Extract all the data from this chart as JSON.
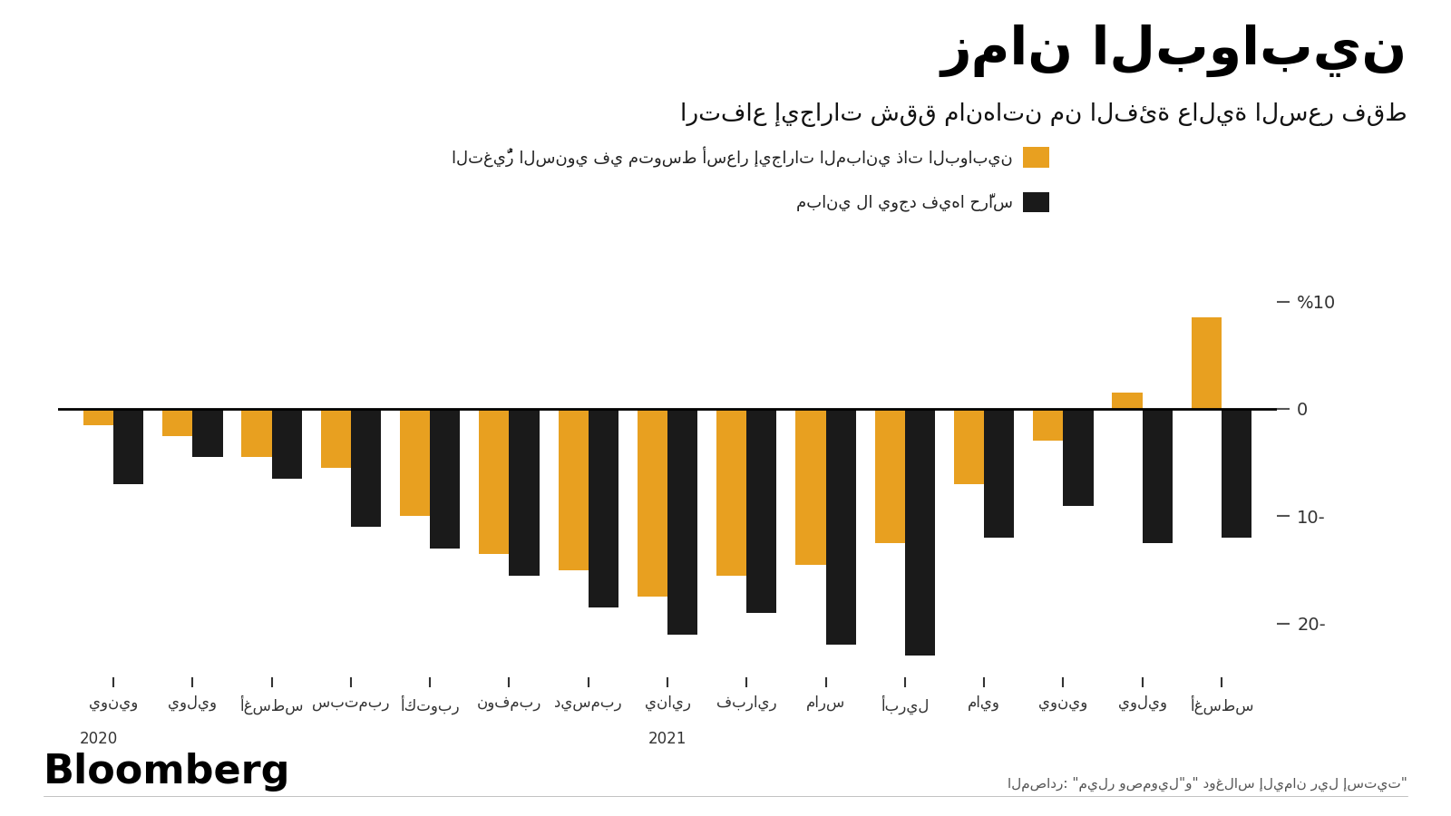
{
  "title": "زمان البوابين",
  "subtitle": "ارتفاع إيجارات شقق مانهاتن من الفئة عالية السعر فقط",
  "legend1": "التغيُّر السنوي في متوسط أسعار إيجارات المباني ذات البوابين",
  "legend2": "مباني لا يوجد فيها حرَّاس",
  "source": "المصادر: \"ميلر وصمويل\"و\" دوغلاس إليمان ريل إستيت\"",
  "bloomberg": "Bloomberg",
  "categories": [
    "يونيو",
    "يوليو",
    "أغسطس",
    "سبتمبر",
    "أكتوبر",
    "نوفمبر",
    "ديسمبر",
    "يناير",
    "فبراير",
    "مارس",
    "أبريل",
    "مايو",
    "يونيو",
    "يوليو",
    "أغسطس"
  ],
  "year_label_0": "2020",
  "year_label_7": "2021",
  "doorman_values": [
    -1.5,
    -2.5,
    -4.5,
    -5.5,
    -10.0,
    -13.5,
    -15.0,
    -17.5,
    -15.5,
    -14.5,
    -12.5,
    -7.0,
    -3.0,
    1.5,
    8.5
  ],
  "no_doorman_values": [
    -7.0,
    -4.5,
    -6.5,
    -11.0,
    -13.0,
    -15.5,
    -18.5,
    -21.0,
    -19.0,
    -22.0,
    -23.0,
    -12.0,
    -9.0,
    -12.5,
    -12.0
  ],
  "ylim": [
    -25,
    13
  ],
  "yticks": [
    10,
    0,
    -10,
    -20
  ],
  "ytick_labels": [
    "%10",
    "0",
    "10-",
    "20-"
  ],
  "bar_color_doorman": "#E8A020",
  "bar_color_nodoorman": "#1a1a1a",
  "bg_color": "#ffffff",
  "bar_width": 0.38
}
